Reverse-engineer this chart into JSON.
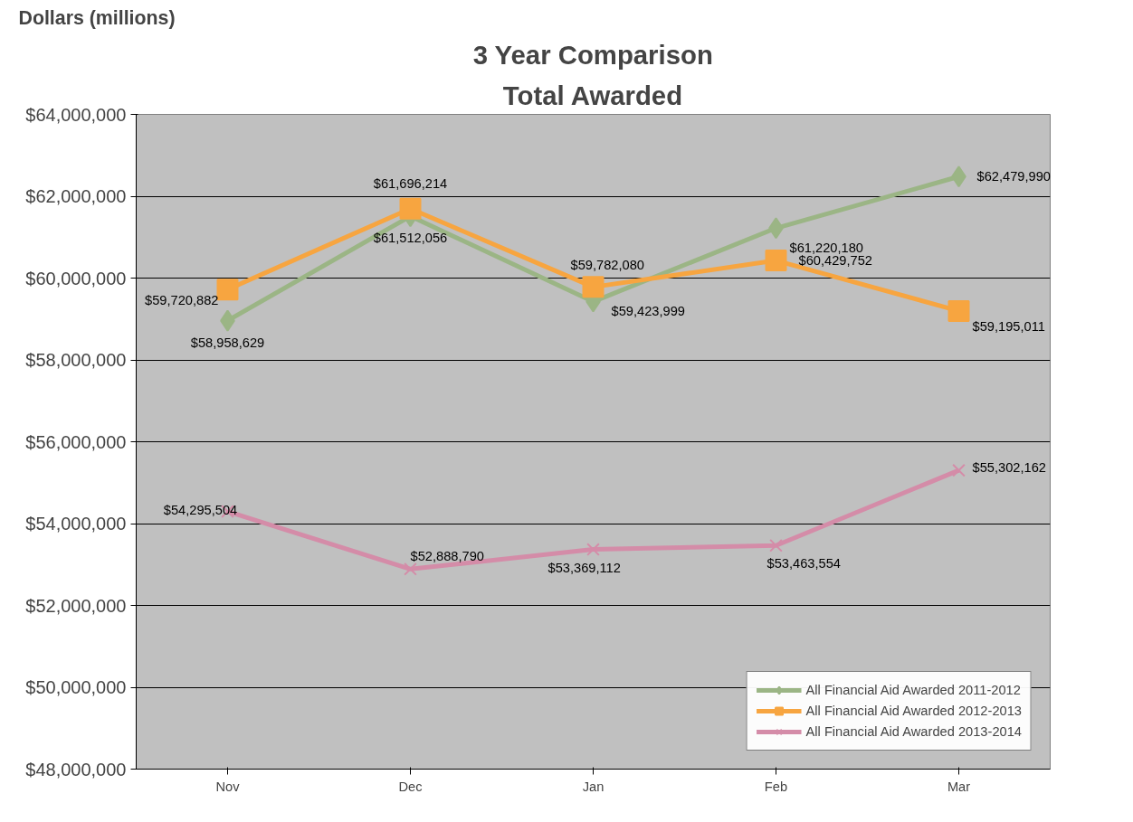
{
  "chart_data": {
    "type": "line",
    "title": "3 Year Comparison",
    "subtitle": "Total Awarded",
    "ylabel": "Dollars  (millions)",
    "categories": [
      "Nov",
      "Dec",
      "Jan",
      "Feb",
      "Mar"
    ],
    "ylim": [
      48000000,
      64000000
    ],
    "yticks": [
      {
        "value": 48000000,
        "label": "$48,000,000"
      },
      {
        "value": 50000000,
        "label": "$50,000,000"
      },
      {
        "value": 52000000,
        "label": "$52,000,000"
      },
      {
        "value": 54000000,
        "label": "$54,000,000"
      },
      {
        "value": 56000000,
        "label": "$56,000,000"
      },
      {
        "value": 58000000,
        "label": "$58,000,000"
      },
      {
        "value": 60000000,
        "label": "$60,000,000"
      },
      {
        "value": 62000000,
        "label": "$62,000,000"
      },
      {
        "value": 64000000,
        "label": "$64,000,000"
      }
    ],
    "grid": "y",
    "legend": "bottom right",
    "line_style": "solid",
    "series": [
      {
        "name": "All Financial Aid Awarded 2011-2012",
        "color": "#9bb585",
        "marker": "diamond",
        "values": [
          58958629,
          61512056,
          59423999,
          61220180,
          62479990
        ],
        "value_labels": [
          "$58,958,629",
          "$61,512,056",
          "$59,423,999",
          "$61,220,180",
          "$62,479,990"
        ]
      },
      {
        "name": "All Financial Aid Awarded 2012-2013",
        "color": "#f7a540",
        "marker": "square",
        "values": [
          59720882,
          61696214,
          59782080,
          60429752,
          59195011
        ],
        "value_labels": [
          "$59,720,882",
          "$61,696,214",
          "$59,782,080",
          "$60,429,752",
          "$59,195,011"
        ]
      },
      {
        "name": "All Financial Aid Awarded 2013-2014",
        "color": "#d48ca8",
        "marker": "cross",
        "values": [
          54295504,
          52888790,
          53369112,
          53463554,
          55302162
        ],
        "value_labels": [
          "$54,295,504",
          "$52,888,790",
          "$53,369,112",
          "$53,463,554",
          "$55,302,162"
        ]
      }
    ]
  }
}
